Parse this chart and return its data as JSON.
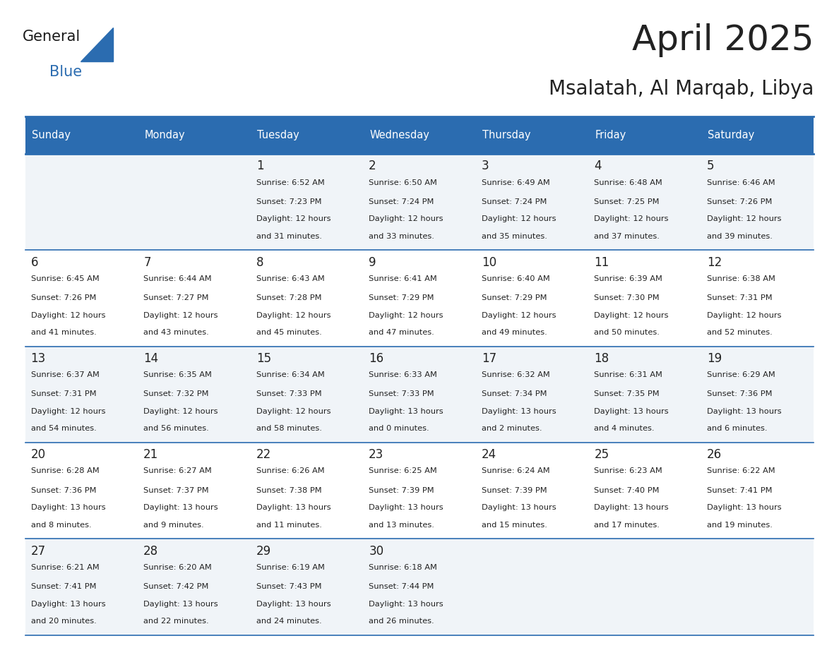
{
  "title": "April 2025",
  "subtitle": "Msalatah, Al Marqab, Libya",
  "header_bg": "#2B6CB0",
  "header_text": "#FFFFFF",
  "row_bg_odd": "#F0F4F8",
  "row_bg_even": "#FFFFFF",
  "border_color": "#2B6CB0",
  "text_color": "#222222",
  "days_of_week": [
    "Sunday",
    "Monday",
    "Tuesday",
    "Wednesday",
    "Thursday",
    "Friday",
    "Saturday"
  ],
  "calendar": [
    [
      {
        "day": "",
        "sunrise": "",
        "sunset": "",
        "daylight": ""
      },
      {
        "day": "",
        "sunrise": "",
        "sunset": "",
        "daylight": ""
      },
      {
        "day": "1",
        "sunrise": "Sunrise: 6:52 AM",
        "sunset": "Sunset: 7:23 PM",
        "daylight": "Daylight: 12 hours\nand 31 minutes."
      },
      {
        "day": "2",
        "sunrise": "Sunrise: 6:50 AM",
        "sunset": "Sunset: 7:24 PM",
        "daylight": "Daylight: 12 hours\nand 33 minutes."
      },
      {
        "day": "3",
        "sunrise": "Sunrise: 6:49 AM",
        "sunset": "Sunset: 7:24 PM",
        "daylight": "Daylight: 12 hours\nand 35 minutes."
      },
      {
        "day": "4",
        "sunrise": "Sunrise: 6:48 AM",
        "sunset": "Sunset: 7:25 PM",
        "daylight": "Daylight: 12 hours\nand 37 minutes."
      },
      {
        "day": "5",
        "sunrise": "Sunrise: 6:46 AM",
        "sunset": "Sunset: 7:26 PM",
        "daylight": "Daylight: 12 hours\nand 39 minutes."
      }
    ],
    [
      {
        "day": "6",
        "sunrise": "Sunrise: 6:45 AM",
        "sunset": "Sunset: 7:26 PM",
        "daylight": "Daylight: 12 hours\nand 41 minutes."
      },
      {
        "day": "7",
        "sunrise": "Sunrise: 6:44 AM",
        "sunset": "Sunset: 7:27 PM",
        "daylight": "Daylight: 12 hours\nand 43 minutes."
      },
      {
        "day": "8",
        "sunrise": "Sunrise: 6:43 AM",
        "sunset": "Sunset: 7:28 PM",
        "daylight": "Daylight: 12 hours\nand 45 minutes."
      },
      {
        "day": "9",
        "sunrise": "Sunrise: 6:41 AM",
        "sunset": "Sunset: 7:29 PM",
        "daylight": "Daylight: 12 hours\nand 47 minutes."
      },
      {
        "day": "10",
        "sunrise": "Sunrise: 6:40 AM",
        "sunset": "Sunset: 7:29 PM",
        "daylight": "Daylight: 12 hours\nand 49 minutes."
      },
      {
        "day": "11",
        "sunrise": "Sunrise: 6:39 AM",
        "sunset": "Sunset: 7:30 PM",
        "daylight": "Daylight: 12 hours\nand 50 minutes."
      },
      {
        "day": "12",
        "sunrise": "Sunrise: 6:38 AM",
        "sunset": "Sunset: 7:31 PM",
        "daylight": "Daylight: 12 hours\nand 52 minutes."
      }
    ],
    [
      {
        "day": "13",
        "sunrise": "Sunrise: 6:37 AM",
        "sunset": "Sunset: 7:31 PM",
        "daylight": "Daylight: 12 hours\nand 54 minutes."
      },
      {
        "day": "14",
        "sunrise": "Sunrise: 6:35 AM",
        "sunset": "Sunset: 7:32 PM",
        "daylight": "Daylight: 12 hours\nand 56 minutes."
      },
      {
        "day": "15",
        "sunrise": "Sunrise: 6:34 AM",
        "sunset": "Sunset: 7:33 PM",
        "daylight": "Daylight: 12 hours\nand 58 minutes."
      },
      {
        "day": "16",
        "sunrise": "Sunrise: 6:33 AM",
        "sunset": "Sunset: 7:33 PM",
        "daylight": "Daylight: 13 hours\nand 0 minutes."
      },
      {
        "day": "17",
        "sunrise": "Sunrise: 6:32 AM",
        "sunset": "Sunset: 7:34 PM",
        "daylight": "Daylight: 13 hours\nand 2 minutes."
      },
      {
        "day": "18",
        "sunrise": "Sunrise: 6:31 AM",
        "sunset": "Sunset: 7:35 PM",
        "daylight": "Daylight: 13 hours\nand 4 minutes."
      },
      {
        "day": "19",
        "sunrise": "Sunrise: 6:29 AM",
        "sunset": "Sunset: 7:36 PM",
        "daylight": "Daylight: 13 hours\nand 6 minutes."
      }
    ],
    [
      {
        "day": "20",
        "sunrise": "Sunrise: 6:28 AM",
        "sunset": "Sunset: 7:36 PM",
        "daylight": "Daylight: 13 hours\nand 8 minutes."
      },
      {
        "day": "21",
        "sunrise": "Sunrise: 6:27 AM",
        "sunset": "Sunset: 7:37 PM",
        "daylight": "Daylight: 13 hours\nand 9 minutes."
      },
      {
        "day": "22",
        "sunrise": "Sunrise: 6:26 AM",
        "sunset": "Sunset: 7:38 PM",
        "daylight": "Daylight: 13 hours\nand 11 minutes."
      },
      {
        "day": "23",
        "sunrise": "Sunrise: 6:25 AM",
        "sunset": "Sunset: 7:39 PM",
        "daylight": "Daylight: 13 hours\nand 13 minutes."
      },
      {
        "day": "24",
        "sunrise": "Sunrise: 6:24 AM",
        "sunset": "Sunset: 7:39 PM",
        "daylight": "Daylight: 13 hours\nand 15 minutes."
      },
      {
        "day": "25",
        "sunrise": "Sunrise: 6:23 AM",
        "sunset": "Sunset: 7:40 PM",
        "daylight": "Daylight: 13 hours\nand 17 minutes."
      },
      {
        "day": "26",
        "sunrise": "Sunrise: 6:22 AM",
        "sunset": "Sunset: 7:41 PM",
        "daylight": "Daylight: 13 hours\nand 19 minutes."
      }
    ],
    [
      {
        "day": "27",
        "sunrise": "Sunrise: 6:21 AM",
        "sunset": "Sunset: 7:41 PM",
        "daylight": "Daylight: 13 hours\nand 20 minutes."
      },
      {
        "day": "28",
        "sunrise": "Sunrise: 6:20 AM",
        "sunset": "Sunset: 7:42 PM",
        "daylight": "Daylight: 13 hours\nand 22 minutes."
      },
      {
        "day": "29",
        "sunrise": "Sunrise: 6:19 AM",
        "sunset": "Sunset: 7:43 PM",
        "daylight": "Daylight: 13 hours\nand 24 minutes."
      },
      {
        "day": "30",
        "sunrise": "Sunrise: 6:18 AM",
        "sunset": "Sunset: 7:44 PM",
        "daylight": "Daylight: 13 hours\nand 26 minutes."
      },
      {
        "day": "",
        "sunrise": "",
        "sunset": "",
        "daylight": ""
      },
      {
        "day": "",
        "sunrise": "",
        "sunset": "",
        "daylight": ""
      },
      {
        "day": "",
        "sunrise": "",
        "sunset": "",
        "daylight": ""
      }
    ]
  ]
}
